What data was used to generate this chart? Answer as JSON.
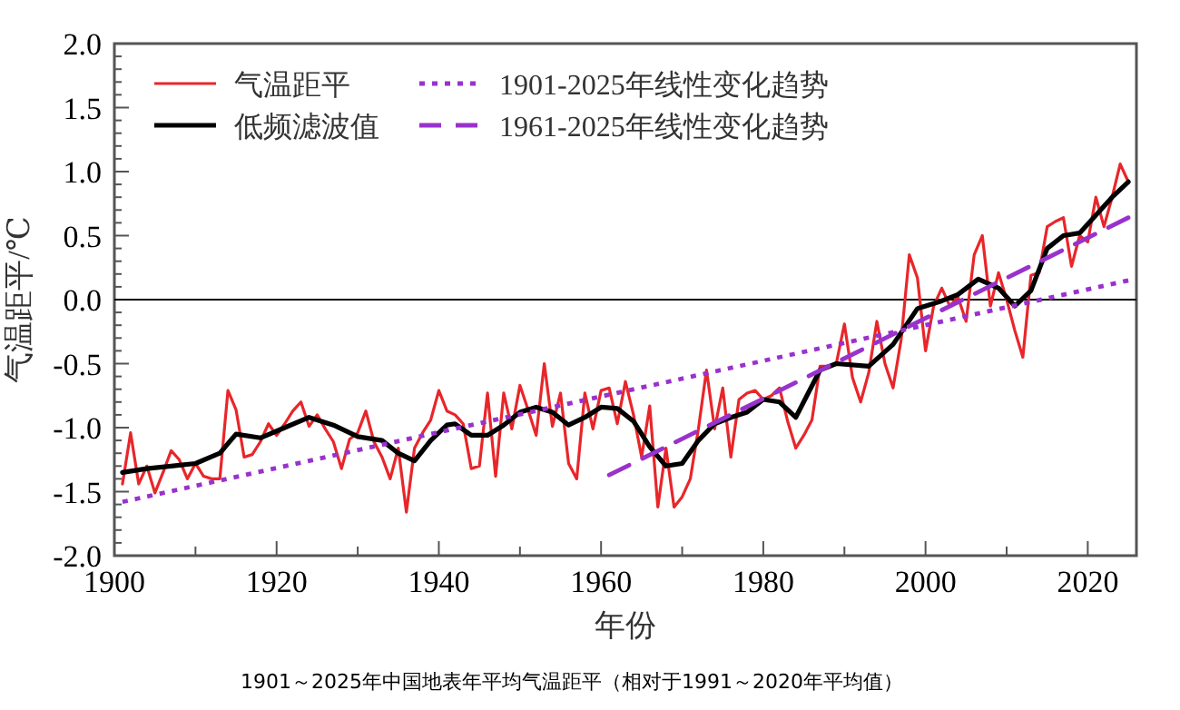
{
  "chart_data": {
    "type": "line",
    "xlabel": "年份",
    "ylabel": "气温距平/℃",
    "annotations": [
      "1901～2025年中国地表年平均气温距平（相对于1991～2020年平均值）"
    ],
    "xlim": [
      1900,
      2026
    ],
    "ylim": [
      -2.0,
      2.0
    ],
    "xticks": [
      1900,
      {
        "value": 1910,
        "label": null
      },
      1920,
      {
        "value": 1930,
        "label": null
      },
      1940,
      {
        "value": 1950,
        "label": null
      },
      1960,
      {
        "value": 1970,
        "label": null
      },
      1980,
      {
        "value": 1990,
        "label": null
      },
      2000,
      {
        "value": 2010,
        "label": null
      },
      2020
    ],
    "yticks": [
      {
        "value": -2.0,
        "label": "-2.0"
      },
      {
        "value": -1.9,
        "label": null
      },
      {
        "value": -1.8,
        "label": null
      },
      {
        "value": -1.7,
        "label": null
      },
      {
        "value": -1.6,
        "label": null
      },
      {
        "value": -1.5,
        "label": "-1.5"
      },
      {
        "value": -1.4,
        "label": null
      },
      {
        "value": -1.3,
        "label": null
      },
      {
        "value": -1.2,
        "label": null
      },
      {
        "value": -1.1,
        "label": null
      },
      {
        "value": -1.0,
        "label": "-1.0"
      },
      {
        "value": -0.9,
        "label": null
      },
      {
        "value": -0.8,
        "label": null
      },
      {
        "value": -0.7,
        "label": null
      },
      {
        "value": -0.6,
        "label": null
      },
      {
        "value": -0.5,
        "label": "-0.5"
      },
      {
        "value": -0.4,
        "label": null
      },
      {
        "value": -0.3,
        "label": null
      },
      {
        "value": -0.2,
        "label": null
      },
      {
        "value": -0.1,
        "label": null
      },
      {
        "value": 0.0,
        "label": "0.0"
      },
      {
        "value": 0.1,
        "label": null
      },
      {
        "value": 0.2,
        "label": null
      },
      {
        "value": 0.3,
        "label": null
      },
      {
        "value": 0.4,
        "label": null
      },
      {
        "value": 0.5,
        "label": "0.5"
      },
      {
        "value": 0.6,
        "label": null
      },
      {
        "value": 0.7,
        "label": null
      },
      {
        "value": 0.8,
        "label": null
      },
      {
        "value": 0.9,
        "label": null
      },
      {
        "value": 1.0,
        "label": "1.0"
      },
      {
        "value": 1.1,
        "label": null
      },
      {
        "value": 1.2,
        "label": null
      },
      {
        "value": 1.3,
        "label": null
      },
      {
        "value": 1.4,
        "label": null
      },
      {
        "value": 1.5,
        "label": "1.5"
      },
      {
        "value": 1.6,
        "label": null
      },
      {
        "value": 1.7,
        "label": null
      },
      {
        "value": 1.8,
        "label": null
      },
      {
        "value": 1.9,
        "label": null
      },
      {
        "value": 2.0,
        "label": "2.0"
      }
    ],
    "legend": "top left",
    "marker": "none",
    "ref_lines": [
      {
        "axis": "y",
        "value": 0,
        "color": "#000000"
      }
    ],
    "series": [
      {
        "name": "气温距平",
        "color": "#e8262a",
        "line_style": "solid",
        "x": [
          1901,
          1902,
          1903,
          1904,
          1905,
          1906,
          1907,
          1908,
          1909,
          1910,
          1911,
          1912,
          1913,
          1914,
          1915,
          1916,
          1917,
          1918,
          1919,
          1920,
          1921,
          1922,
          1923,
          1924,
          1925,
          1926,
          1927,
          1928,
          1929,
          1930,
          1931,
          1932,
          1933,
          1934,
          1935,
          1936,
          1937,
          1938,
          1939,
          1940,
          1941,
          1942,
          1943,
          1944,
          1945,
          1946,
          1947,
          1948,
          1949,
          1950,
          1951,
          1952,
          1953,
          1954,
          1955,
          1956,
          1957,
          1958,
          1959,
          1960,
          1961,
          1962,
          1963,
          1964,
          1965,
          1966,
          1967,
          1968,
          1969,
          1970,
          1971,
          1972,
          1973,
          1974,
          1975,
          1976,
          1977,
          1978,
          1979,
          1980,
          1981,
          1982,
          1983,
          1984,
          1985,
          1986,
          1987,
          1988,
          1989,
          1990,
          1991,
          1992,
          1993,
          1994,
          1995,
          1996,
          1997,
          1998,
          1999,
          2000,
          2001,
          2002,
          2003,
          2004,
          2005,
          2006,
          2007,
          2008,
          2009,
          2010,
          2011,
          2012,
          2013,
          2014,
          2015,
          2016,
          2017,
          2018,
          2019,
          2020,
          2021,
          2022,
          2023,
          2024,
          2025
        ],
        "values": [
          -1.44,
          -1.04,
          -1.44,
          -1.3,
          -1.51,
          -1.35,
          -1.18,
          -1.25,
          -1.4,
          -1.28,
          -1.38,
          -1.4,
          -1.4,
          -0.71,
          -0.86,
          -1.23,
          -1.21,
          -1.11,
          -0.97,
          -1.06,
          -0.97,
          -0.87,
          -0.8,
          -0.99,
          -0.9,
          -1.01,
          -1.11,
          -1.32,
          -1.09,
          -1.04,
          -0.87,
          -1.11,
          -1.23,
          -1.4,
          -1.16,
          -1.66,
          -1.16,
          -1.04,
          -0.94,
          -0.71,
          -0.87,
          -0.9,
          -0.97,
          -1.32,
          -1.3,
          -0.73,
          -1.38,
          -0.73,
          -1.01,
          -0.67,
          -0.86,
          -1.06,
          -0.5,
          -0.99,
          -0.73,
          -1.28,
          -1.4,
          -0.73,
          -1.01,
          -0.71,
          -0.69,
          -0.97,
          -0.64,
          -0.9,
          -1.23,
          -0.83,
          -1.62,
          -1.16,
          -1.62,
          -1.54,
          -1.4,
          -1.01,
          -0.55,
          -1.01,
          -0.69,
          -1.23,
          -0.78,
          -0.73,
          -0.71,
          -0.78,
          -0.75,
          -0.69,
          -0.95,
          -1.16,
          -1.06,
          -0.94,
          -0.52,
          -0.52,
          -0.5,
          -0.19,
          -0.61,
          -0.8,
          -0.57,
          -0.17,
          -0.5,
          -0.69,
          -0.31,
          0.35,
          0.17,
          -0.4,
          -0.05,
          0.09,
          -0.05,
          0.02,
          -0.17,
          0.35,
          0.5,
          -0.05,
          0.21,
          0.0,
          -0.24,
          -0.45,
          0.19,
          0.21,
          0.57,
          0.61,
          0.64,
          0.26,
          0.5,
          0.45,
          0.8,
          0.57,
          0.8,
          1.06,
          0.92
        ]
      },
      {
        "name": "低频滤波值",
        "color": "#000000",
        "line_style": "solid",
        "x": [
          1901,
          1904,
          1907,
          1910,
          1913,
          1915,
          1918,
          1921,
          1924,
          1927,
          1930,
          1933,
          1935,
          1937,
          1939,
          1941,
          1942,
          1944,
          1946,
          1948,
          1950,
          1952,
          1954,
          1956,
          1958,
          1960,
          1962,
          1964,
          1966,
          1968,
          1970,
          1972,
          1974,
          1976,
          1978,
          1980,
          1982,
          1984,
          1987,
          1989,
          1993,
          1996,
          1999,
          2002,
          2004,
          2006.5,
          2009,
          2011,
          2013,
          2015,
          2017,
          2019,
          2021,
          2023,
          2025
        ],
        "values": [
          -1.35,
          -1.32,
          -1.3,
          -1.28,
          -1.2,
          -1.05,
          -1.08,
          -1.0,
          -0.92,
          -0.98,
          -1.07,
          -1.1,
          -1.2,
          -1.26,
          -1.1,
          -0.98,
          -0.97,
          -1.06,
          -1.06,
          -0.98,
          -0.88,
          -0.84,
          -0.88,
          -0.98,
          -0.92,
          -0.84,
          -0.85,
          -0.95,
          -1.15,
          -1.3,
          -1.28,
          -1.1,
          -0.97,
          -0.92,
          -0.88,
          -0.78,
          -0.8,
          -0.92,
          -0.55,
          -0.5,
          -0.52,
          -0.35,
          -0.07,
          -0.01,
          0.04,
          0.16,
          0.09,
          -0.05,
          0.07,
          0.4,
          0.5,
          0.52,
          0.66,
          0.8,
          0.92
        ]
      },
      {
        "name": "1901-2025年线性变化趋势",
        "color": "#9932cc",
        "line_style": "dotted",
        "x": [
          1901,
          2025
        ],
        "values": [
          -1.58,
          0.15
        ]
      },
      {
        "name": "1961-2025年线性变化趋势",
        "color": "#9932cc",
        "line_style": "dashed",
        "x": [
          1961,
          2025
        ],
        "values": [
          -1.37,
          0.64
        ]
      }
    ]
  }
}
